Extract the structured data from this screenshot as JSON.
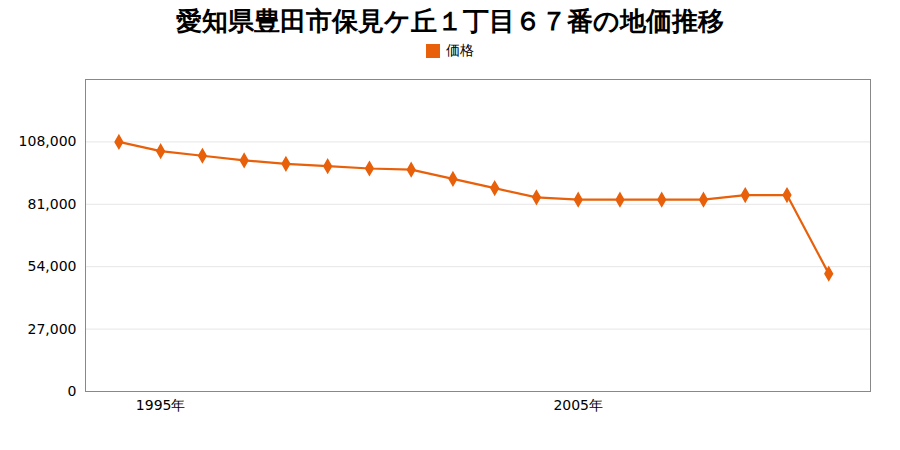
{
  "chart_data": {
    "type": "line",
    "title": "愛知県豊田市保見ケ丘１丁目６７番の地価推移",
    "x": [
      1994,
      1995,
      1996,
      1997,
      1998,
      1999,
      2000,
      2001,
      2002,
      2003,
      2004,
      2005,
      2006,
      2007,
      2008,
      2009,
      2010,
      2011
    ],
    "series": [
      {
        "name": "価格",
        "color": "#e8600a",
        "marker": "diamond",
        "values": [
          108000,
          104000,
          102000,
          100000,
          98500,
          97500,
          96500,
          96000,
          92000,
          88000,
          84000,
          83000,
          83000,
          83000,
          83000,
          85000,
          85000,
          51000
        ]
      }
    ],
    "xlim": [
      1993.2,
      2012.0
    ],
    "xticks": [
      {
        "value": 1995,
        "label": "1995年"
      },
      {
        "value": 2005,
        "label": "2005年"
      }
    ],
    "ylim": [
      0,
      135000
    ],
    "yticks": [
      0,
      {
        "value": 27000,
        "label": "27,000"
      },
      {
        "value": 54000,
        "label": "54,000"
      },
      {
        "value": 81000,
        "label": "81,000"
      },
      {
        "value": 108000,
        "label": "108,000"
      }
    ],
    "grid": true,
    "legend": "top"
  }
}
